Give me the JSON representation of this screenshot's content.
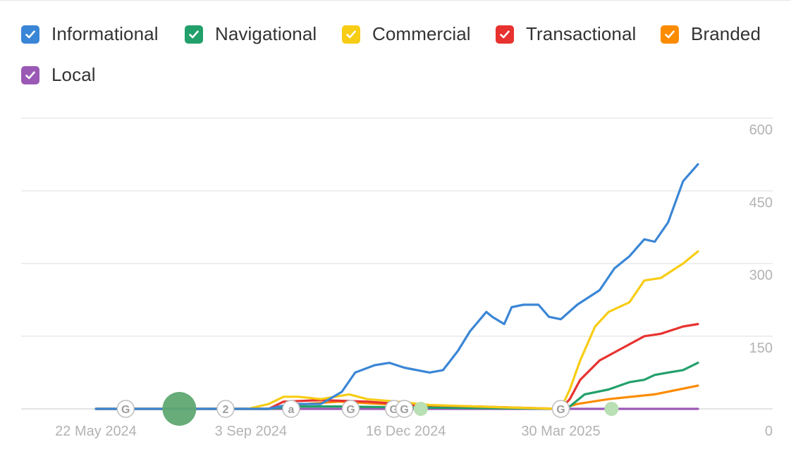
{
  "legend": [
    {
      "label": "Informational",
      "color": "#3a86d6",
      "checked": true
    },
    {
      "label": "Navigational",
      "color": "#22a06b",
      "checked": true
    },
    {
      "label": "Commercial",
      "color": "#f7cc14",
      "checked": true
    },
    {
      "label": "Transactional",
      "color": "#e8322f",
      "checked": true
    },
    {
      "label": "Branded",
      "color": "#fb8c00",
      "checked": true
    },
    {
      "label": "Local",
      "color": "#9b59b6",
      "checked": true
    }
  ],
  "chart_data": {
    "type": "line",
    "x_tick_labels": [
      "22 May 2024",
      "3 Sep 2024",
      "16 Dec 2024",
      "30 Mar 2025"
    ],
    "y_tick_labels": [
      "0",
      "150",
      "300",
      "450",
      "600"
    ],
    "ylim": [
      0,
      600
    ],
    "xlim": [
      "2024-05-22",
      "2025-06-30"
    ],
    "y_axis_position": "right",
    "grid": true,
    "legend_position": "top",
    "series": [
      {
        "name": "Informational",
        "color": "#3a86d6",
        "points": [
          [
            "2024-05-22",
            0
          ],
          [
            "2024-08-10",
            0
          ],
          [
            "2024-09-15",
            0
          ],
          [
            "2024-09-30",
            10
          ],
          [
            "2024-10-20",
            10
          ],
          [
            "2024-11-03",
            35
          ],
          [
            "2024-11-12",
            75
          ],
          [
            "2024-11-25",
            90
          ],
          [
            "2024-12-05",
            95
          ],
          [
            "2024-12-15",
            85
          ],
          [
            "2025-01-01",
            75
          ],
          [
            "2025-01-10",
            80
          ],
          [
            "2025-01-20",
            120
          ],
          [
            "2025-01-28",
            160
          ],
          [
            "2025-02-08",
            200
          ],
          [
            "2025-02-12",
            190
          ],
          [
            "2025-02-20",
            175
          ],
          [
            "2025-02-25",
            210
          ],
          [
            "2025-03-05",
            215
          ],
          [
            "2025-03-15",
            215
          ],
          [
            "2025-03-22",
            190
          ],
          [
            "2025-03-30",
            185
          ],
          [
            "2025-04-10",
            215
          ],
          [
            "2025-04-25",
            245
          ],
          [
            "2025-05-05",
            290
          ],
          [
            "2025-05-15",
            315
          ],
          [
            "2025-05-25",
            350
          ],
          [
            "2025-06-01",
            345
          ],
          [
            "2025-06-10",
            385
          ],
          [
            "2025-06-20",
            470
          ],
          [
            "2025-06-30",
            505
          ]
        ]
      },
      {
        "name": "Navigational",
        "color": "#22a06b",
        "points": [
          [
            "2024-05-22",
            0
          ],
          [
            "2024-09-15",
            0
          ],
          [
            "2024-10-01",
            5
          ],
          [
            "2024-11-01",
            5
          ],
          [
            "2024-12-15",
            3
          ],
          [
            "2025-03-30",
            0
          ],
          [
            "2025-04-05",
            5
          ],
          [
            "2025-04-15",
            30
          ],
          [
            "2025-05-01",
            40
          ],
          [
            "2025-05-15",
            55
          ],
          [
            "2025-05-25",
            60
          ],
          [
            "2025-06-01",
            70
          ],
          [
            "2025-06-10",
            75
          ],
          [
            "2025-06-20",
            80
          ],
          [
            "2025-06-30",
            95
          ]
        ]
      },
      {
        "name": "Commercial",
        "color": "#f7cc14",
        "points": [
          [
            "2024-05-22",
            0
          ],
          [
            "2024-09-01",
            0
          ],
          [
            "2024-09-15",
            10
          ],
          [
            "2024-09-25",
            25
          ],
          [
            "2024-10-05",
            25
          ],
          [
            "2024-10-20",
            20
          ],
          [
            "2024-11-08",
            30
          ],
          [
            "2024-11-20",
            20
          ],
          [
            "2024-12-10",
            15
          ],
          [
            "2025-01-01",
            8
          ],
          [
            "2025-02-20",
            3
          ],
          [
            "2025-03-30",
            0
          ],
          [
            "2025-04-05",
            40
          ],
          [
            "2025-04-12",
            100
          ],
          [
            "2025-04-22",
            170
          ],
          [
            "2025-05-01",
            200
          ],
          [
            "2025-05-15",
            220
          ],
          [
            "2025-05-25",
            265
          ],
          [
            "2025-06-05",
            270
          ],
          [
            "2025-06-20",
            300
          ],
          [
            "2025-06-30",
            325
          ]
        ]
      },
      {
        "name": "Transactional",
        "color": "#e8322f",
        "points": [
          [
            "2024-05-22",
            0
          ],
          [
            "2024-09-15",
            0
          ],
          [
            "2024-09-25",
            15
          ],
          [
            "2024-10-20",
            18
          ],
          [
            "2024-11-20",
            15
          ],
          [
            "2024-12-20",
            8
          ],
          [
            "2025-02-01",
            5
          ],
          [
            "2025-03-30",
            0
          ],
          [
            "2025-04-05",
            20
          ],
          [
            "2025-04-12",
            60
          ],
          [
            "2025-04-25",
            100
          ],
          [
            "2025-05-10",
            125
          ],
          [
            "2025-05-25",
            150
          ],
          [
            "2025-06-05",
            155
          ],
          [
            "2025-06-20",
            170
          ],
          [
            "2025-06-30",
            175
          ]
        ]
      },
      {
        "name": "Branded",
        "color": "#fb8c00",
        "points": [
          [
            "2024-05-22",
            0
          ],
          [
            "2024-09-15",
            0
          ],
          [
            "2024-10-01",
            8
          ],
          [
            "2024-11-01",
            15
          ],
          [
            "2024-12-01",
            10
          ],
          [
            "2025-02-01",
            3
          ],
          [
            "2025-03-30",
            0
          ],
          [
            "2025-04-10",
            10
          ],
          [
            "2025-05-01",
            20
          ],
          [
            "2025-06-01",
            30
          ],
          [
            "2025-06-30",
            48
          ]
        ]
      },
      {
        "name": "Local",
        "color": "#9b59b6",
        "points": [
          [
            "2024-05-22",
            0
          ],
          [
            "2025-06-30",
            0
          ]
        ]
      }
    ],
    "annotations": [
      {
        "date": "2024-06-11",
        "label": "G",
        "kind": "marker"
      },
      {
        "date": "2024-07-17",
        "label": "",
        "kind": "large-dot",
        "color": "#5fa872"
      },
      {
        "date": "2024-08-17",
        "label": "2",
        "kind": "marker"
      },
      {
        "date": "2024-09-30",
        "label": "a",
        "kind": "marker"
      },
      {
        "date": "2024-11-09",
        "label": "G",
        "kind": "marker"
      },
      {
        "date": "2024-12-08",
        "label": "G",
        "kind": "marker"
      },
      {
        "date": "2024-12-15",
        "label": "G",
        "kind": "marker"
      },
      {
        "date": "2024-12-26",
        "label": "",
        "kind": "small-dot",
        "color": "#b9dfb4"
      },
      {
        "date": "2025-03-30",
        "label": "G",
        "kind": "marker"
      },
      {
        "date": "2025-05-03",
        "label": "",
        "kind": "small-dot",
        "color": "#b9dfb4"
      }
    ]
  }
}
